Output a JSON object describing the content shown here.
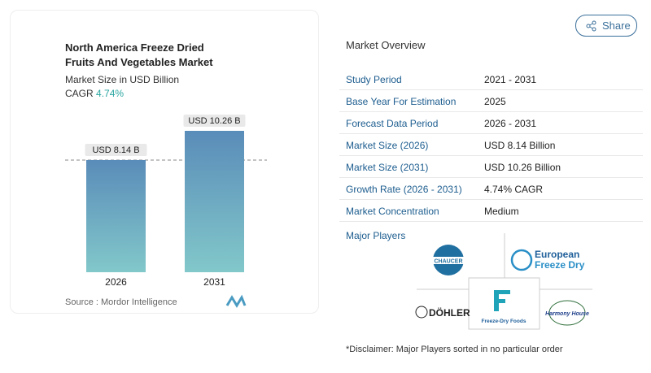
{
  "chart_data": {
    "type": "bar",
    "title": "North America Freeze Dried Fruits And Vegetables Market",
    "subtitle": "Market Size in USD Billion",
    "cagr_label": "CAGR",
    "cagr": "4.74%",
    "categories": [
      "2026",
      "2031"
    ],
    "values": [
      8.14,
      10.26
    ],
    "value_labels": [
      "USD 8.14 B",
      "USD 10.26 B"
    ],
    "color": [
      "#5a8cb9",
      "#82c8ca"
    ],
    "source": "Source :  Mordor Intelligence"
  },
  "share": "Share",
  "overview": {
    "title": "Market Overview",
    "rows": [
      [
        "Study Period",
        "2021 - 2031"
      ],
      [
        "Base Year For Estimation",
        "2025"
      ],
      [
        "Forecast Data Period",
        "2026 - 2031"
      ],
      [
        "Market Size (2026)",
        "USD 8.14 Billion"
      ],
      [
        "Market Size (2031)",
        "USD 10.26 Billion"
      ],
      [
        "Growth Rate (2026 - 2031)",
        "4.74% CAGR"
      ],
      [
        "Market Concentration",
        "Medium"
      ]
    ]
  },
  "players": {
    "title": "Major Players",
    "logos": [
      "CHAUCER",
      "European",
      "Freeze Dry",
      "DÖHLER",
      "Freeze-Dry Foods",
      "Harmony House"
    ]
  },
  "disclaimer": "*Disclaimer: Major Players sorted in no particular order"
}
